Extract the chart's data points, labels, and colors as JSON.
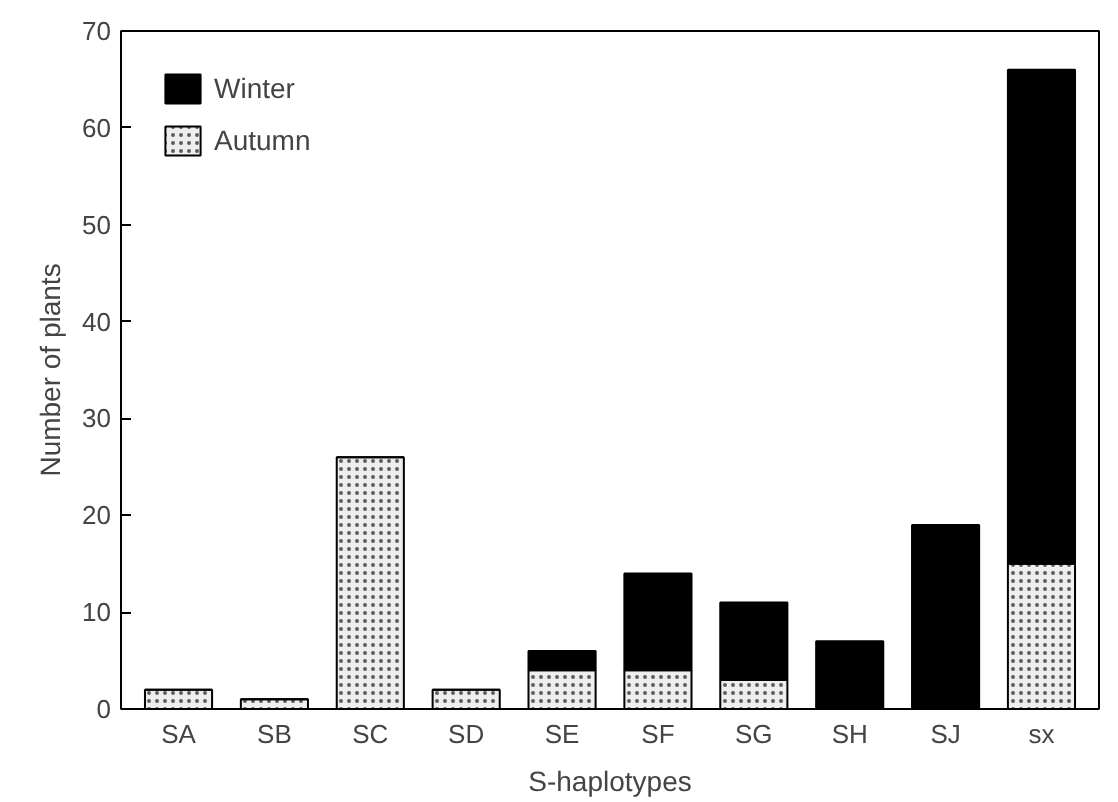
{
  "chart_data": {
    "type": "bar",
    "stacked": true,
    "xlabel": "S-haplotypes",
    "ylabel": "Number of plants",
    "categories": [
      "SA",
      "SB",
      "SC",
      "SD",
      "SE",
      "SF",
      "SG",
      "SH",
      "SJ",
      "sx"
    ],
    "series": [
      {
        "name": "Autumn",
        "color": "#eeeeee",
        "values": [
          2,
          1,
          26,
          2,
          4,
          4,
          3,
          0,
          0,
          15
        ]
      },
      {
        "name": "Winter",
        "color": "#000000",
        "values": [
          0,
          0,
          0,
          0,
          2,
          10,
          8,
          7,
          19,
          51
        ]
      }
    ],
    "ylim": [
      0,
      70
    ],
    "yticks": [
      0,
      10,
      20,
      30,
      40,
      50,
      60,
      70
    ],
    "grid": false,
    "legend": "top left"
  }
}
